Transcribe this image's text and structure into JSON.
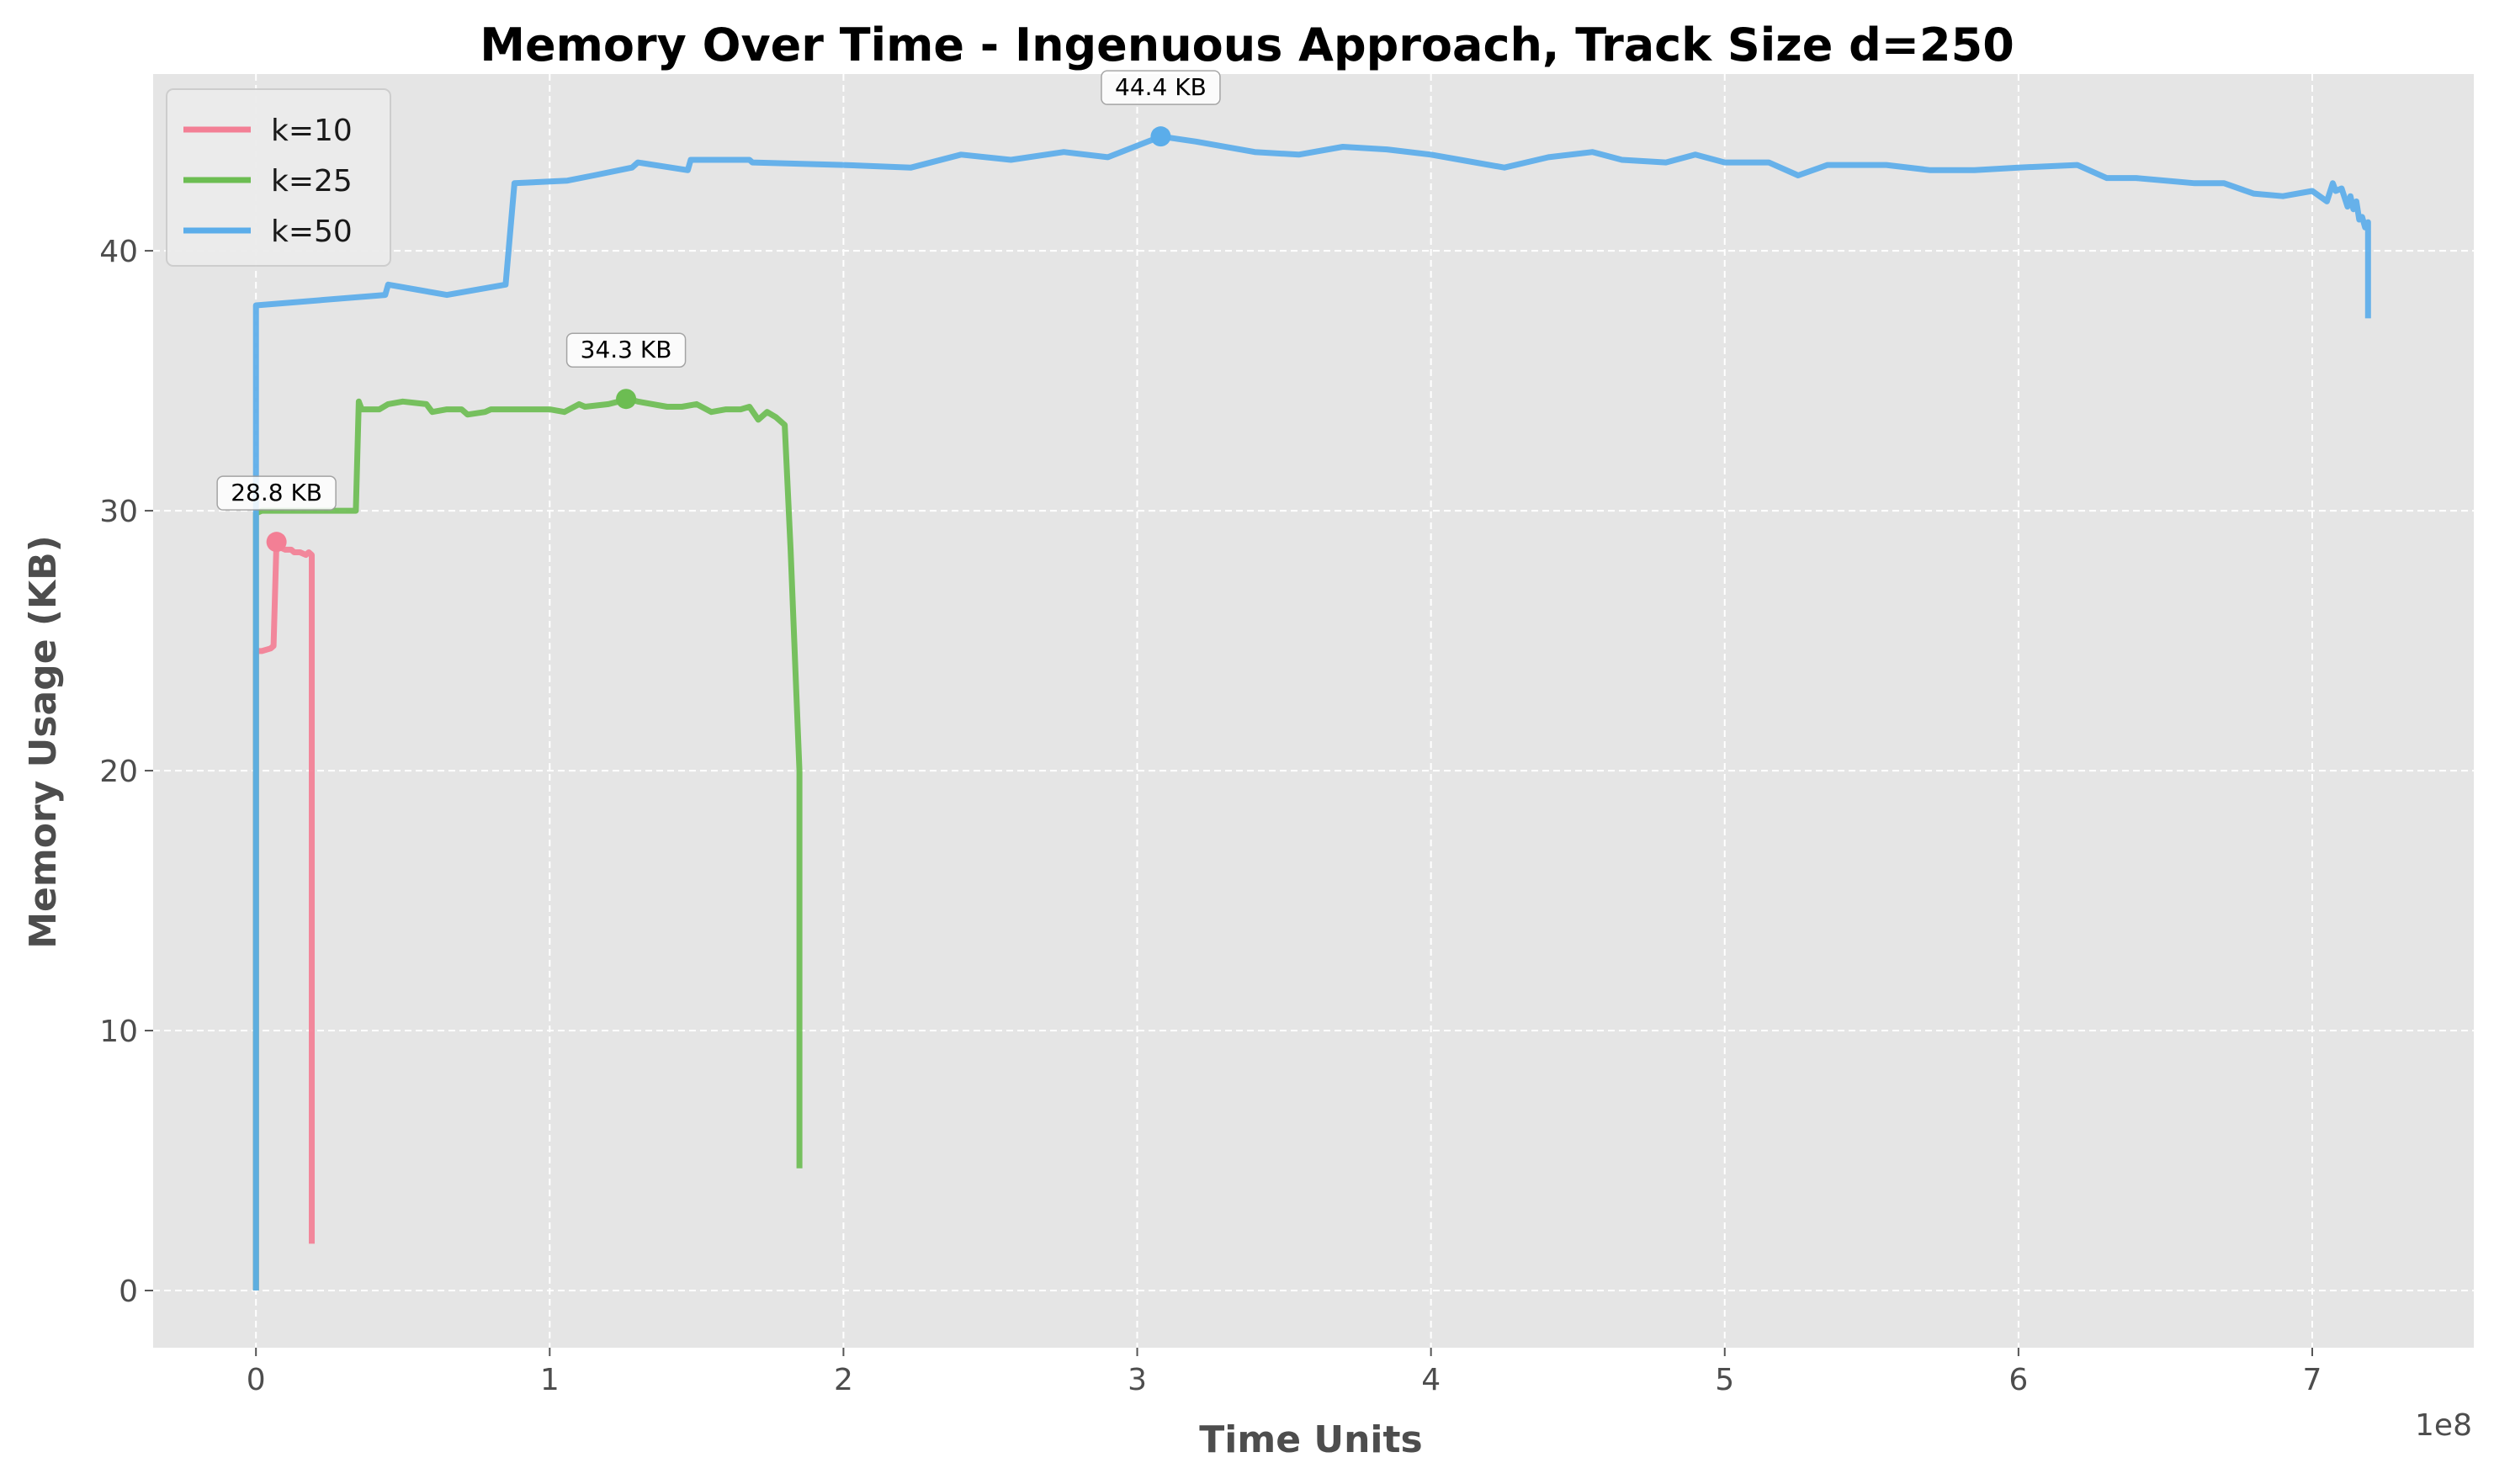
{
  "chart_data": {
    "type": "line",
    "title": "Memory Over Time - Ingenuous Approach, Track Size d=250",
    "xlabel": "Time Units",
    "ylabel": "Memory Usage (KB)",
    "x_scale_label": "1e8",
    "xlim": [
      -0.35,
      7.55
    ],
    "ylim": [
      -2.2,
      46.8
    ],
    "xticks": [
      0,
      1,
      2,
      3,
      4,
      5,
      6,
      7
    ],
    "xtick_labels": [
      "0",
      "1",
      "2",
      "3",
      "4",
      "5",
      "6",
      "7"
    ],
    "yticks": [
      0,
      10,
      20,
      30,
      40
    ],
    "ytick_labels": [
      "0",
      "10",
      "20",
      "30",
      "40"
    ],
    "grid": true,
    "legend_position": "top-left",
    "background": "#e5e5e5",
    "series": [
      {
        "name": "k=10",
        "color": "#f37f95",
        "x": [
          0.0,
          0.0,
          0.02,
          0.05,
          0.06,
          0.07,
          0.08,
          0.1,
          0.12,
          0.13,
          0.15,
          0.17,
          0.18,
          0.19,
          0.19,
          0.19
        ],
        "y": [
          0,
          24.6,
          24.6,
          24.7,
          24.8,
          28.8,
          28.6,
          28.5,
          28.5,
          28.4,
          28.4,
          28.3,
          28.4,
          28.3,
          27.0,
          1.8
        ],
        "peak": {
          "x": 0.07,
          "y": 28.8,
          "label": "28.8 KB"
        }
      },
      {
        "name": "k=25",
        "color": "#6cbd52",
        "x": [
          0.0,
          0.0,
          0.02,
          0.25,
          0.34,
          0.35,
          0.36,
          0.42,
          0.45,
          0.5,
          0.58,
          0.6,
          0.65,
          0.7,
          0.72,
          0.78,
          0.8,
          0.85,
          0.9,
          1.0,
          1.05,
          1.1,
          1.12,
          1.2,
          1.27,
          1.3,
          1.4,
          1.45,
          1.5,
          1.55,
          1.6,
          1.65,
          1.68,
          1.71,
          1.74,
          1.77,
          1.8,
          1.82,
          1.85,
          1.85
        ],
        "y": [
          0,
          29.9,
          30.0,
          30.0,
          30.0,
          34.2,
          33.9,
          33.9,
          34.1,
          34.2,
          34.1,
          33.8,
          33.9,
          33.9,
          33.7,
          33.8,
          33.9,
          33.9,
          33.9,
          33.9,
          33.8,
          34.1,
          34.0,
          34.1,
          34.3,
          34.2,
          34.0,
          34.0,
          34.1,
          33.8,
          33.9,
          33.9,
          34.0,
          33.5,
          33.8,
          33.6,
          33.3,
          28.5,
          20.0,
          4.7
        ],
        "peak": {
          "x": 1.26,
          "y": 34.3,
          "label": "34.3 KB"
        }
      },
      {
        "name": "k=50",
        "color": "#5badea",
        "x": [
          0.0,
          0.0,
          0.44,
          0.45,
          0.65,
          0.85,
          0.88,
          1.06,
          1.15,
          1.28,
          1.3,
          1.47,
          1.48,
          1.68,
          1.69,
          2.0,
          2.23,
          2.4,
          2.57,
          2.75,
          2.9,
          3.08,
          3.2,
          3.4,
          3.55,
          3.7,
          3.85,
          4.0,
          4.1,
          4.25,
          4.4,
          4.55,
          4.65,
          4.8,
          4.9,
          5.0,
          5.15,
          5.25,
          5.35,
          5.55,
          5.7,
          5.85,
          6.0,
          6.2,
          6.3,
          6.4,
          6.6,
          6.7,
          6.8,
          6.9,
          7.0,
          7.05,
          7.07,
          7.08,
          7.1,
          7.12,
          7.13,
          7.14,
          7.15,
          7.16,
          7.17,
          7.18,
          7.19,
          7.19
        ],
        "y": [
          0,
          37.9,
          38.3,
          38.7,
          38.3,
          38.7,
          42.6,
          42.7,
          42.9,
          43.2,
          43.4,
          43.1,
          43.5,
          43.5,
          43.4,
          43.3,
          43.2,
          43.7,
          43.5,
          43.8,
          43.6,
          44.4,
          44.2,
          43.8,
          43.7,
          44.0,
          43.9,
          43.7,
          43.5,
          43.2,
          43.6,
          43.8,
          43.5,
          43.4,
          43.7,
          43.4,
          43.4,
          42.9,
          43.3,
          43.3,
          43.1,
          43.1,
          43.2,
          43.3,
          42.8,
          42.8,
          42.6,
          42.6,
          42.2,
          42.1,
          42.3,
          41.9,
          42.6,
          42.3,
          42.4,
          41.7,
          42.1,
          41.6,
          41.9,
          41.2,
          41.3,
          40.9,
          41.1,
          37.4
        ],
        "peak": {
          "x": 3.08,
          "y": 44.4,
          "label": "44.4 KB"
        }
      }
    ]
  }
}
